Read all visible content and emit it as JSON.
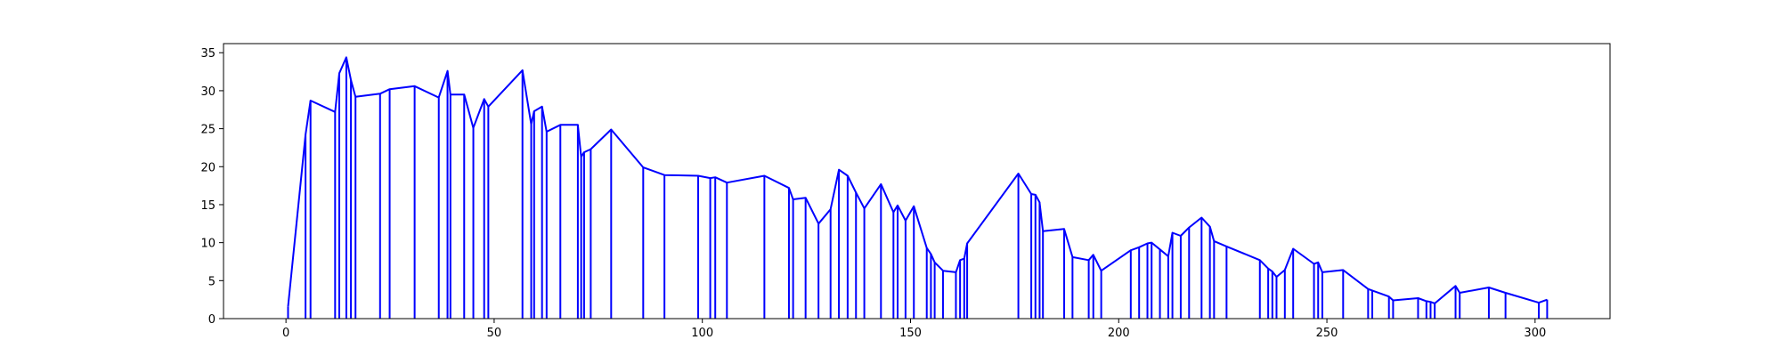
{
  "chart_data": {
    "type": "line",
    "title": "",
    "xlabel": "",
    "ylabel": "",
    "xlim": [
      -15,
      318
    ],
    "ylim": [
      0,
      36.2
    ],
    "grid": false,
    "legend": "none",
    "line_color": "#0000ff",
    "x_ticks": [
      0,
      50,
      100,
      150,
      200,
      250,
      300
    ],
    "y_ticks": [
      0,
      5,
      10,
      15,
      20,
      25,
      30,
      35
    ],
    "drop_lines": true,
    "series": [
      {
        "points": [
          [
            0.5,
            1.6
          ],
          [
            4.7,
            24.2
          ],
          [
            5.9,
            28.7
          ],
          [
            11.8,
            27.2
          ],
          [
            12.8,
            32.3
          ],
          [
            14.5,
            34.4
          ],
          [
            15.6,
            31.4
          ],
          [
            16.7,
            29.2
          ],
          [
            22.6,
            29.6
          ],
          [
            24.9,
            30.2
          ],
          [
            30.9,
            30.6
          ],
          [
            36.7,
            29.1
          ],
          [
            38.8,
            32.6
          ],
          [
            39.5,
            29.5
          ],
          [
            42.8,
            29.5
          ],
          [
            45.0,
            25.1
          ],
          [
            47.6,
            28.9
          ],
          [
            48.6,
            27.9
          ],
          [
            56.8,
            32.7
          ],
          [
            58.9,
            25.6
          ],
          [
            59.6,
            27.3
          ],
          [
            61.5,
            27.9
          ],
          [
            62.6,
            24.6
          ],
          [
            65.9,
            25.5
          ],
          [
            70.1,
            25.5
          ],
          [
            70.9,
            21.3
          ],
          [
            71.6,
            21.9
          ],
          [
            73.2,
            22.3
          ],
          [
            78.1,
            24.9
          ],
          [
            85.8,
            19.9
          ],
          [
            90.9,
            18.9
          ],
          [
            99.0,
            18.8
          ],
          [
            101.9,
            18.5
          ],
          [
            103.1,
            18.6
          ],
          [
            105.9,
            17.9
          ],
          [
            114.9,
            18.8
          ],
          [
            120.8,
            17.2
          ],
          [
            121.8,
            15.7
          ],
          [
            124.8,
            15.9
          ],
          [
            127.9,
            12.5
          ],
          [
            130.8,
            14.4
          ],
          [
            132.8,
            19.6
          ],
          [
            134.9,
            18.8
          ],
          [
            136.9,
            16.6
          ],
          [
            138.9,
            14.5
          ],
          [
            142.9,
            17.7
          ],
          [
            145.9,
            14.0
          ],
          [
            146.9,
            14.9
          ],
          [
            148.8,
            12.9
          ],
          [
            150.8,
            14.8
          ],
          [
            153.9,
            9.3
          ],
          [
            154.9,
            8.5
          ],
          [
            155.8,
            7.4
          ],
          [
            157.8,
            6.3
          ],
          [
            160.9,
            6.1
          ],
          [
            161.9,
            7.7
          ],
          [
            162.9,
            7.9
          ],
          [
            163.6,
            9.9
          ],
          [
            175.9,
            19.1
          ],
          [
            179.0,
            16.4
          ],
          [
            180.0,
            16.3
          ],
          [
            181.0,
            15.3
          ],
          [
            181.8,
            11.5
          ],
          [
            186.9,
            11.8
          ],
          [
            188.9,
            8.1
          ],
          [
            192.8,
            7.7
          ],
          [
            193.9,
            8.4
          ],
          [
            195.8,
            6.3
          ],
          [
            202.9,
            9.0
          ],
          [
            204.9,
            9.4
          ],
          [
            206.9,
            9.9
          ],
          [
            207.9,
            10.0
          ],
          [
            209.9,
            9.1
          ],
          [
            211.9,
            8.2
          ],
          [
            212.9,
            11.3
          ],
          [
            214.9,
            10.9
          ],
          [
            216.9,
            12.0
          ],
          [
            219.9,
            13.3
          ],
          [
            221.9,
            12.1
          ],
          [
            222.9,
            10.2
          ],
          [
            225.9,
            9.5
          ],
          [
            233.9,
            7.7
          ],
          [
            235.9,
            6.6
          ],
          [
            236.9,
            6.2
          ],
          [
            237.9,
            5.5
          ],
          [
            239.9,
            6.4
          ],
          [
            241.9,
            9.2
          ],
          [
            246.9,
            7.2
          ],
          [
            247.9,
            7.4
          ],
          [
            248.9,
            6.1
          ],
          [
            253.9,
            6.4
          ],
          [
            259.9,
            3.9
          ],
          [
            260.9,
            3.7
          ],
          [
            264.9,
            2.9
          ],
          [
            265.9,
            2.4
          ],
          [
            271.9,
            2.7
          ],
          [
            273.9,
            2.3
          ],
          [
            274.9,
            2.2
          ],
          [
            275.9,
            2.0
          ],
          [
            280.9,
            4.3
          ],
          [
            281.9,
            3.4
          ],
          [
            288.9,
            4.1
          ],
          [
            292.9,
            3.4
          ],
          [
            300.9,
            2.1
          ],
          [
            302.9,
            2.5
          ]
        ]
      }
    ]
  }
}
